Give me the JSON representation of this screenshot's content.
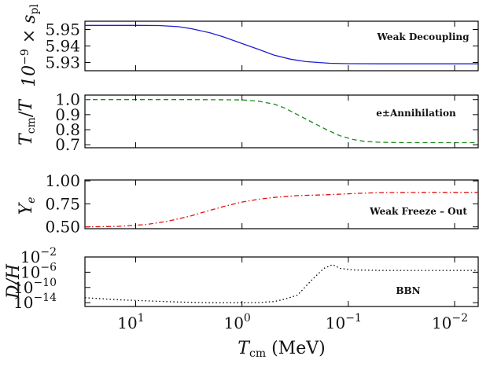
{
  "chart_data": [
    {
      "type": "line",
      "ylabel": "10⁻⁹ × s_pl",
      "annotation": "Weak Decoupling",
      "x_scale": "log",
      "x_reversed": true,
      "xlim": [
        30,
        0.006
      ],
      "ylim": [
        5.925,
        5.955
      ],
      "yticks": [
        5.93,
        5.94,
        5.95
      ],
      "ytick_labels": [
        "5.93",
        "5.94",
        "5.95"
      ],
      "series": [
        {
          "line_style": "solid",
          "color": "#1f1fd8",
          "points": [
            [
              30,
              5.9525
            ],
            [
              10,
              5.9525
            ],
            [
              6,
              5.9524
            ],
            [
              4,
              5.9517
            ],
            [
              3,
              5.9505
            ],
            [
              2,
              5.948
            ],
            [
              1.5,
              5.9455
            ],
            [
              1,
              5.9415
            ],
            [
              0.7,
              5.938
            ],
            [
              0.5,
              5.9345
            ],
            [
              0.35,
              5.932
            ],
            [
              0.25,
              5.9305
            ],
            [
              0.15,
              5.9295
            ],
            [
              0.1,
              5.9293
            ],
            [
              0.05,
              5.9292
            ],
            [
              0.006,
              5.9292
            ]
          ]
        }
      ]
    },
    {
      "type": "line",
      "ylabel": "T_cm / T",
      "annotation": "e±Annihilation",
      "x_scale": "log",
      "x_reversed": true,
      "xlim": [
        30,
        0.006
      ],
      "ylim": [
        0.68,
        1.03
      ],
      "yticks": [
        0.7,
        0.8,
        0.9,
        1.0
      ],
      "ytick_labels": [
        "0.7",
        "0.8",
        "0.9",
        "1.0"
      ],
      "series": [
        {
          "line_style": "dashed",
          "color": "#1a8a1a",
          "points": [
            [
              30,
              1.0
            ],
            [
              3,
              1.0
            ],
            [
              1,
              0.998
            ],
            [
              0.7,
              0.99
            ],
            [
              0.5,
              0.97
            ],
            [
              0.4,
              0.945
            ],
            [
              0.3,
              0.9
            ],
            [
              0.22,
              0.85
            ],
            [
              0.16,
              0.8
            ],
            [
              0.12,
              0.76
            ],
            [
              0.09,
              0.735
            ],
            [
              0.07,
              0.722
            ],
            [
              0.05,
              0.716
            ],
            [
              0.03,
              0.714
            ],
            [
              0.006,
              0.714
            ]
          ]
        }
      ]
    },
    {
      "type": "line",
      "ylabel": "Y_e",
      "annotation": "Weak Freeze – Out",
      "x_scale": "log",
      "x_reversed": true,
      "xlim": [
        30,
        0.006
      ],
      "ylim": [
        0.48,
        1.01
      ],
      "yticks": [
        0.5,
        0.75,
        1.0
      ],
      "ytick_labels": [
        "0.50",
        "0.75",
        "1.00"
      ],
      "series": [
        {
          "line_style": "dashdot",
          "color": "#e01010",
          "points": [
            [
              30,
              0.5
            ],
            [
              15,
              0.505
            ],
            [
              8,
              0.525
            ],
            [
              5,
              0.56
            ],
            [
              3,
              0.62
            ],
            [
              2,
              0.68
            ],
            [
              1.5,
              0.72
            ],
            [
              1,
              0.77
            ],
            [
              0.7,
              0.8
            ],
            [
              0.5,
              0.82
            ],
            [
              0.3,
              0.84
            ],
            [
              0.15,
              0.85
            ],
            [
              0.08,
              0.865
            ],
            [
              0.05,
              0.872
            ],
            [
              0.02,
              0.875
            ],
            [
              0.006,
              0.875
            ]
          ]
        }
      ]
    },
    {
      "type": "line",
      "ylabel": "D/H",
      "annotation": "BBN",
      "x_scale": "log",
      "x_reversed": true,
      "xlim": [
        30,
        0.006
      ],
      "y_scale": "log",
      "ylim": [
        1e-15,
        0.01
      ],
      "yticks": [
        1e-14,
        1e-10,
        1e-06,
        0.01
      ],
      "ytick_labels": [
        "10",
        "10",
        "10",
        "10"
      ],
      "ytick_exponents": [
        "−14",
        "−10",
        "−6",
        "−2"
      ],
      "series": [
        {
          "line_style": "dotted",
          "color": "#000000",
          "points": [
            [
              30,
              2e-13
            ],
            [
              15,
              6e-14
            ],
            [
              8,
              3e-14
            ],
            [
              4,
              1.5e-14
            ],
            [
              2,
              1e-14
            ],
            [
              1,
              1e-14
            ],
            [
              0.7,
              1.1e-14
            ],
            [
              0.5,
              2e-14
            ],
            [
              0.4,
              8e-14
            ],
            [
              0.3,
              1e-12
            ],
            [
              0.22,
              1e-08
            ],
            [
              0.17,
              1e-05
            ],
            [
              0.14,
              0.0001
            ],
            [
              0.12,
              1e-05
            ],
            [
              0.09,
              4e-06
            ],
            [
              0.05,
              3e-06
            ],
            [
              0.02,
              3e-06
            ],
            [
              0.006,
              3e-06
            ]
          ]
        }
      ]
    }
  ],
  "shared_x": {
    "xticks": [
      10,
      1,
      0.1,
      0.01
    ],
    "xtick_labels": [
      "10",
      "10",
      "10",
      "10"
    ],
    "xtick_exponents": [
      "1",
      "0",
      "−1",
      "−2"
    ],
    "xlabel": "T_cm (MeV)"
  }
}
